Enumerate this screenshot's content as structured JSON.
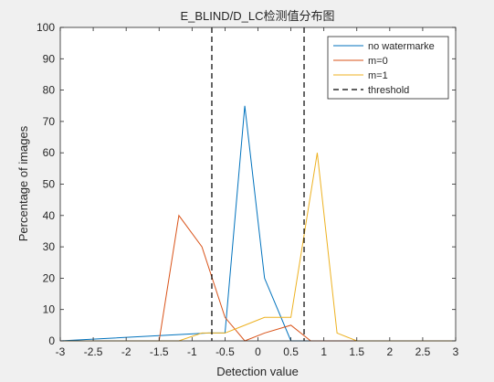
{
  "chart_data": {
    "type": "line",
    "title": "E_BLIND/D_LC检测值分布图",
    "xlabel": "Detection value",
    "ylabel": "Percentage of images",
    "xlim": [
      -3,
      3
    ],
    "ylim": [
      0,
      100
    ],
    "xticks": [
      -3,
      -2.5,
      -2,
      -1.5,
      -1,
      -0.5,
      0,
      0.5,
      1,
      1.5,
      2,
      2.5,
      3
    ],
    "yticks": [
      0,
      10,
      20,
      30,
      40,
      50,
      60,
      70,
      80,
      90,
      100
    ],
    "grid": false,
    "legend_position": "top-right",
    "series": [
      {
        "name": "no watermarke",
        "color": "#0072bd",
        "style": "solid",
        "x": [
          -3,
          -0.75,
          -0.5,
          -0.2,
          0.1,
          0.5,
          0.8,
          3
        ],
        "y": [
          0,
          2.5,
          2.5,
          75,
          20,
          0,
          0,
          0
        ]
      },
      {
        "name": "m=0",
        "color": "#d95319",
        "style": "solid",
        "x": [
          -3,
          -1.5,
          -1.2,
          -0.85,
          -0.5,
          -0.2,
          0.1,
          0.5,
          0.8,
          3
        ],
        "y": [
          0,
          0,
          40,
          30,
          7.5,
          0,
          2.5,
          5,
          0,
          0
        ]
      },
      {
        "name": "m=1",
        "color": "#edb120",
        "style": "solid",
        "x": [
          -3,
          -1.2,
          -0.85,
          -0.5,
          -0.2,
          0.1,
          0.5,
          0.9,
          1.2,
          1.5,
          3
        ],
        "y": [
          0,
          0,
          2.5,
          2.5,
          5,
          7.5,
          7.5,
          60,
          2.5,
          0,
          0
        ]
      },
      {
        "name": "threshold",
        "color": "#000000",
        "style": "dashed",
        "vlines": [
          -0.7,
          0.7
        ]
      }
    ]
  }
}
